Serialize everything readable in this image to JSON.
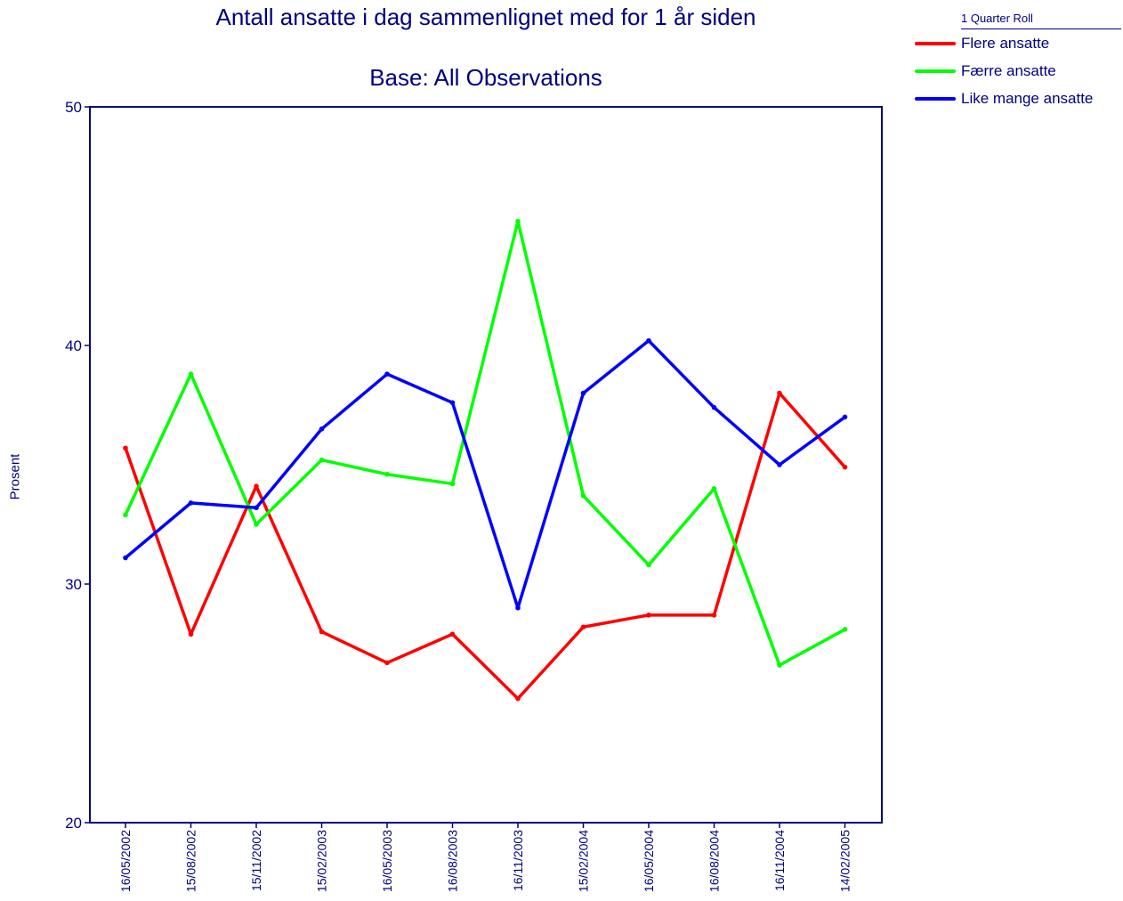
{
  "chart_data": {
    "type": "line",
    "title": "Antall ansatte i dag sammenlignet med for 1 år siden",
    "subtitle": "Base:  All Observations",
    "xlabel": "",
    "ylabel": "Prosent",
    "ylim": [
      20,
      50
    ],
    "yticks": [
      20,
      30,
      40,
      50
    ],
    "grid": false,
    "legend_title": "1 Quarter Roll",
    "legend_position": "top-right",
    "categories": [
      "16/05/2002",
      "15/08/2002",
      "15/11/2002",
      "15/02/2003",
      "16/05/2003",
      "16/08/2003",
      "16/11/2003",
      "15/02/2004",
      "16/05/2004",
      "16/08/2004",
      "16/11/2004",
      "14/02/2005"
    ],
    "series": [
      {
        "name": "Flere ansatte",
        "color": "#ff0000",
        "values": [
          35.7,
          27.9,
          34.1,
          28.0,
          26.7,
          27.9,
          25.2,
          28.2,
          28.7,
          28.7,
          38.0,
          34.9
        ]
      },
      {
        "name": "Færre ansatte",
        "color": "#00ff00",
        "values": [
          32.9,
          38.8,
          32.5,
          35.2,
          34.6,
          34.2,
          45.2,
          33.7,
          30.8,
          34.0,
          26.6,
          28.1
        ]
      },
      {
        "name": "Like mange ansatte",
        "color": "#0000ff",
        "values": [
          31.1,
          33.4,
          33.2,
          36.5,
          38.8,
          37.6,
          29.0,
          38.0,
          40.2,
          37.4,
          35.0,
          37.0
        ]
      }
    ]
  },
  "colors": {
    "text": "#000080",
    "axis": "#000080"
  }
}
